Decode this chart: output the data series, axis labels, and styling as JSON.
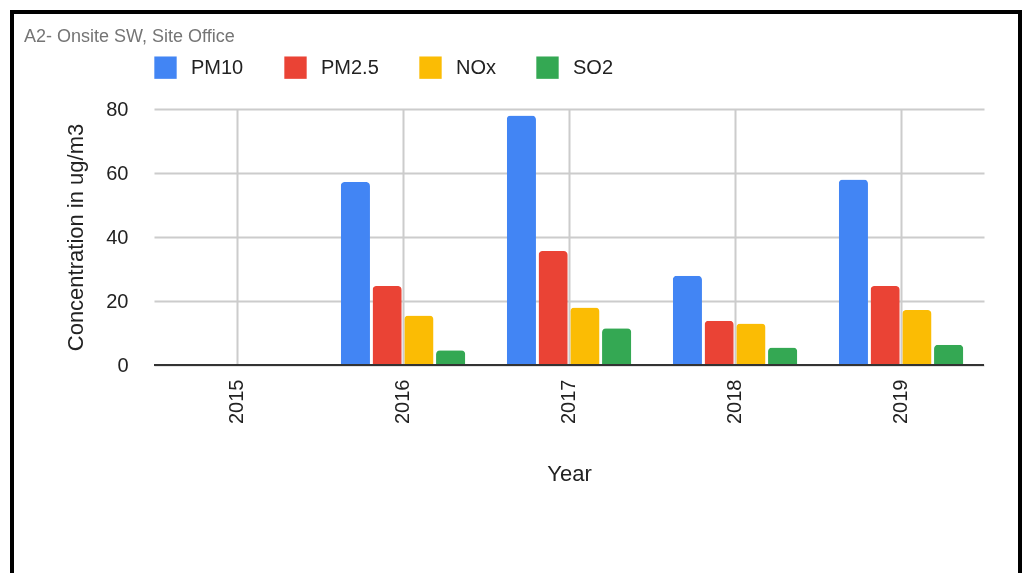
{
  "chart_data": {
    "type": "bar",
    "title": "A2- Onsite SW, Site Office",
    "xlabel": "Year",
    "ylabel": "Concentration in ug/m3",
    "categories": [
      "2015",
      "2016",
      "2017",
      "2018",
      "2019"
    ],
    "series": [
      {
        "name": "PM10",
        "color": "#4285f4",
        "values": [
          null,
          57.2,
          78,
          27.9,
          58
        ]
      },
      {
        "name": "PM2.5",
        "color": "#ea4335",
        "values": [
          null,
          24.7,
          35.6,
          13.8,
          24.7
        ]
      },
      {
        "name": "NOx",
        "color": "#fbbc04",
        "values": [
          null,
          15.5,
          18,
          13,
          17.2
        ]
      },
      {
        "name": "SO2",
        "color": "#34a853",
        "values": [
          null,
          4.6,
          11.5,
          5.5,
          6.3
        ]
      }
    ],
    "ylim": [
      0,
      80
    ],
    "yticks": [
      0,
      20,
      40,
      60,
      80
    ],
    "grid": true,
    "legend": "top"
  }
}
